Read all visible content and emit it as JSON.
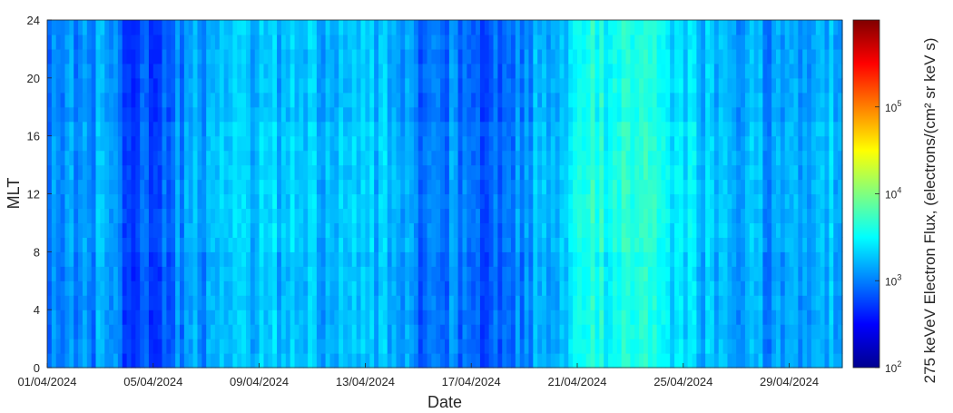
{
  "chart_data": {
    "type": "heatmap",
    "xlabel": "Date",
    "ylabel": "MLT",
    "x_range": [
      "01/04/2024",
      "01/05/2024"
    ],
    "ylim": [
      0,
      24
    ],
    "x_ticks": [
      "01/04/2024",
      "05/04/2024",
      "09/04/2024",
      "13/04/2024",
      "17/04/2024",
      "21/04/2024",
      "25/04/2024",
      "29/04/2024"
    ],
    "y_ticks": [
      "0",
      "4",
      "8",
      "12",
      "16",
      "20",
      "24"
    ],
    "colorbar": {
      "label": "275 keVeV Electron Flux, (electrons/(cm² sr keV s)",
      "scale": "log",
      "range": [
        100,
        1000000
      ],
      "ticks": [
        {
          "base": "10",
          "exp": "2"
        },
        {
          "base": "10",
          "exp": "3"
        },
        {
          "base": "10",
          "exp": "4"
        },
        {
          "base": "10",
          "exp": "5"
        }
      ],
      "colormap": "jet"
    },
    "daily_log10_flux_estimate": [
      3.05,
      3.0,
      3.1,
      2.8,
      2.75,
      3.05,
      3.15,
      3.2,
      3.25,
      3.25,
      3.2,
      3.2,
      3.25,
      3.2,
      2.9,
      3.0,
      2.9,
      2.85,
      3.1,
      3.2,
      3.6,
      3.55,
      3.6,
      3.5,
      3.3,
      3.25,
      3.2,
      3.1,
      3.15,
      3.2
    ],
    "grid": false
  }
}
